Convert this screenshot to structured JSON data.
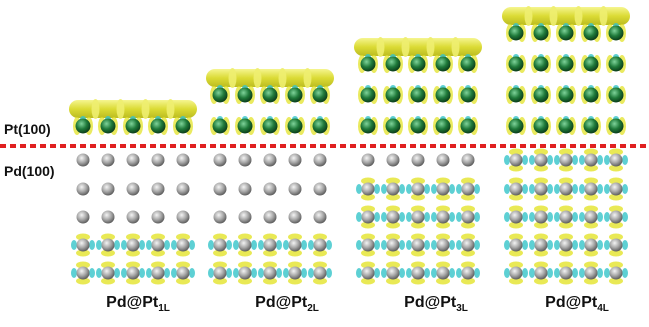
{
  "labels": {
    "pt_surface": "Pt(100)",
    "pd_surface": "Pd(100)"
  },
  "panels": [
    {
      "prefix": "Pd@Pt",
      "sub": "1L",
      "pt_layers": 1
    },
    {
      "prefix": "Pd@Pt",
      "sub": "2L",
      "pt_layers": 2
    },
    {
      "prefix": "Pd@Pt",
      "sub": "3L",
      "pt_layers": 3
    },
    {
      "prefix": "Pd@Pt",
      "sub": "4L",
      "pt_layers": 4
    }
  ],
  "pd_layers": 5,
  "atoms_per_row": 5,
  "colors": {
    "pt_atom": "#1f7a3a",
    "pd_atom": "#a8a8a8",
    "charge_gain": "#e3e32a",
    "charge_loss": "#35c4c9",
    "interface_line": "#e02020"
  }
}
